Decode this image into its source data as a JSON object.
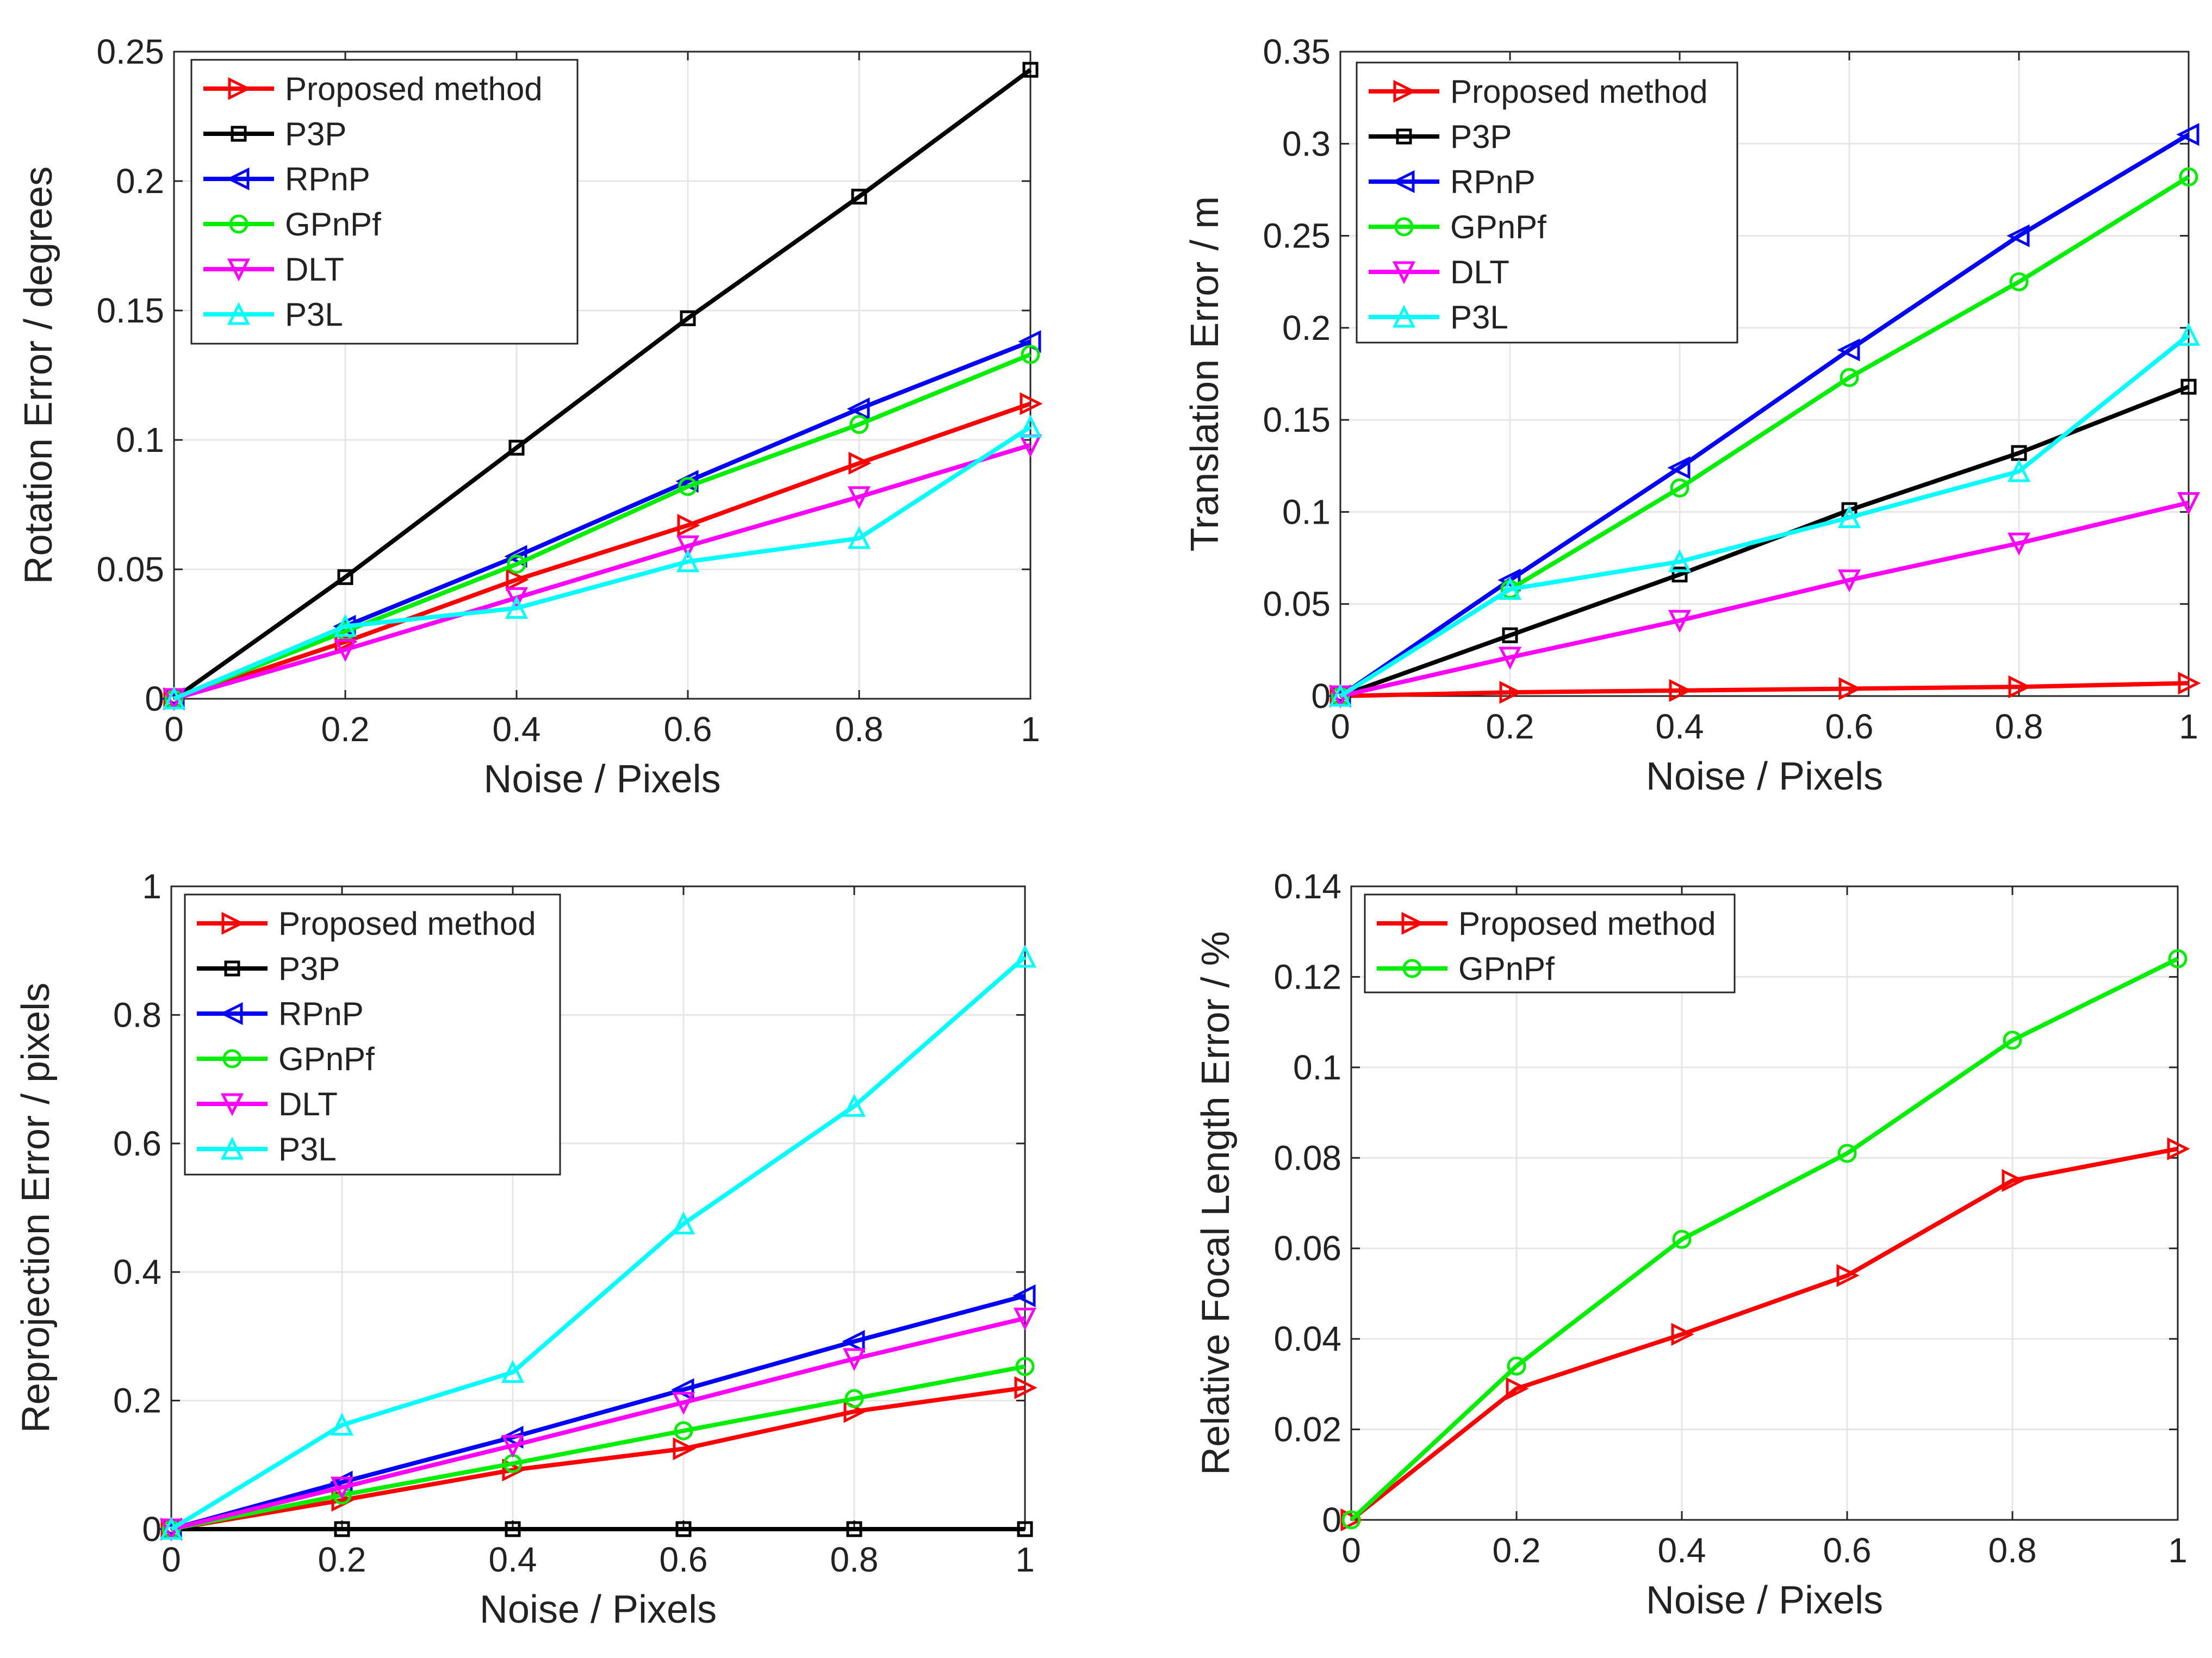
{
  "figure": {
    "charts": [
      {
        "id": "rotation",
        "ylabel": "Rotation Error / degrees"
      },
      {
        "id": "translation",
        "ylabel": "Translation Error / m"
      },
      {
        "id": "reprojection",
        "ylabel": "Reprojection Error / pixels"
      },
      {
        "id": "focal",
        "ylabel": "Relative Focal Length Error / %"
      }
    ]
  },
  "chart_data": [
    {
      "type": "line",
      "title": "",
      "xlabel": "Noise / Pixels",
      "ylabel": "Rotation Error / degrees",
      "x": [
        0,
        0.2,
        0.4,
        0.6,
        0.8,
        1
      ],
      "xlim": [
        0,
        1
      ],
      "ylim": [
        0,
        0.25
      ],
      "xticks": [
        "0",
        "0.2",
        "0.4",
        "0.6",
        "0.8",
        "1"
      ],
      "yticks": [
        "0",
        "0.05",
        "0.1",
        "0.15",
        "0.2",
        "0.25"
      ],
      "grid": true,
      "legend_position": "top-left",
      "series": [
        {
          "name": "Proposed method",
          "values": [
            0,
            0.022,
            0.046,
            0.067,
            0.091,
            0.114
          ]
        },
        {
          "name": "P3P",
          "values": [
            0,
            0.047,
            0.097,
            0.147,
            0.194,
            0.243
          ]
        },
        {
          "name": "RPnP",
          "values": [
            0,
            0.028,
            0.055,
            0.084,
            0.112,
            0.138
          ]
        },
        {
          "name": "GPnPf",
          "values": [
            0,
            0.026,
            0.052,
            0.082,
            0.106,
            0.133
          ]
        },
        {
          "name": "DLT",
          "values": [
            0,
            0.019,
            0.039,
            0.059,
            0.078,
            0.098
          ]
        },
        {
          "name": "P3L",
          "values": [
            0,
            0.028,
            0.035,
            0.053,
            0.062,
            0.105
          ]
        }
      ]
    },
    {
      "type": "line",
      "title": "",
      "xlabel": "Noise / Pixels",
      "ylabel": "Translation Error / m",
      "x": [
        0,
        0.2,
        0.4,
        0.6,
        0.8,
        1
      ],
      "xlim": [
        0,
        1
      ],
      "ylim": [
        0,
        0.35
      ],
      "xticks": [
        "0",
        "0.2",
        "0.4",
        "0.6",
        "0.8",
        "1"
      ],
      "yticks": [
        "0",
        "0.05",
        "0.1",
        "0.15",
        "0.2",
        "0.25",
        "0.3",
        "0.35"
      ],
      "grid": true,
      "legend_position": "top-left",
      "series": [
        {
          "name": "Proposed method",
          "values": [
            0,
            0.002,
            0.003,
            0.004,
            0.005,
            0.007
          ]
        },
        {
          "name": "P3P",
          "values": [
            0,
            0.033,
            0.066,
            0.101,
            0.132,
            0.168
          ]
        },
        {
          "name": "RPnP",
          "values": [
            0,
            0.063,
            0.124,
            0.188,
            0.25,
            0.305
          ]
        },
        {
          "name": "GPnPf",
          "values": [
            0,
            0.058,
            0.113,
            0.173,
            0.225,
            0.282
          ]
        },
        {
          "name": "DLT",
          "values": [
            0,
            0.021,
            0.041,
            0.063,
            0.083,
            0.105
          ]
        },
        {
          "name": "P3L",
          "values": [
            0,
            0.058,
            0.073,
            0.097,
            0.122,
            0.196
          ]
        }
      ]
    },
    {
      "type": "line",
      "title": "",
      "xlabel": "Noise / Pixels",
      "ylabel": "Reprojection Error / pixels",
      "x": [
        0,
        0.2,
        0.4,
        0.6,
        0.8,
        1
      ],
      "xlim": [
        0,
        1
      ],
      "ylim": [
        0,
        1
      ],
      "xticks": [
        "0",
        "0.2",
        "0.4",
        "0.6",
        "0.8",
        "1"
      ],
      "yticks": [
        "0",
        "0.2",
        "0.4",
        "0.6",
        "0.8",
        "1"
      ],
      "grid": true,
      "legend_position": "top-left",
      "series": [
        {
          "name": "Proposed method",
          "values": [
            0,
            0.045,
            0.092,
            0.125,
            0.183,
            0.22
          ]
        },
        {
          "name": "P3P",
          "values": [
            0,
            0,
            0,
            0,
            0,
            0
          ]
        },
        {
          "name": "RPnP",
          "values": [
            0,
            0.073,
            0.143,
            0.217,
            0.292,
            0.363
          ]
        },
        {
          "name": "GPnPf",
          "values": [
            0,
            0.053,
            0.102,
            0.153,
            0.203,
            0.253
          ]
        },
        {
          "name": "DLT",
          "values": [
            0,
            0.065,
            0.13,
            0.197,
            0.265,
            0.328
          ]
        },
        {
          "name": "P3L",
          "values": [
            0,
            0.162,
            0.244,
            0.475,
            0.658,
            0.89
          ]
        }
      ]
    },
    {
      "type": "line",
      "title": "",
      "xlabel": "Noise / Pixels",
      "ylabel": "Relative Focal Length Error / %",
      "x": [
        0,
        0.2,
        0.4,
        0.6,
        0.8,
        1
      ],
      "xlim": [
        0,
        1
      ],
      "ylim": [
        0,
        0.14
      ],
      "xticks": [
        "0",
        "0.2",
        "0.4",
        "0.6",
        "0.8",
        "1"
      ],
      "yticks": [
        "0",
        "0.02",
        "0.04",
        "0.06",
        "0.08",
        "0.1",
        "0.12",
        "0.14"
      ],
      "grid": true,
      "legend_position": "top-left",
      "series": [
        {
          "name": "Proposed method",
          "values": [
            0,
            0.029,
            0.041,
            0.054,
            0.075,
            0.082
          ]
        },
        {
          "name": "GPnPf",
          "values": [
            0,
            0.034,
            0.062,
            0.081,
            0.106,
            0.124
          ]
        }
      ]
    }
  ],
  "styles": {
    "series_colors": {
      "Proposed method": "#ff0000",
      "P3P": "#000000",
      "RPnP": "#0000ff",
      "GPnPf": "#00ee00",
      "DLT": "#ff00ff",
      "P3L": "#00ffff"
    },
    "series_markers": {
      "Proposed method": "triangle-right",
      "P3P": "square",
      "RPnP": "triangle-left",
      "GPnPf": "circle",
      "DLT": "triangle-down",
      "P3L": "triangle-up"
    },
    "grid_color": "#e6e6e6",
    "axis_color": "#262626"
  }
}
